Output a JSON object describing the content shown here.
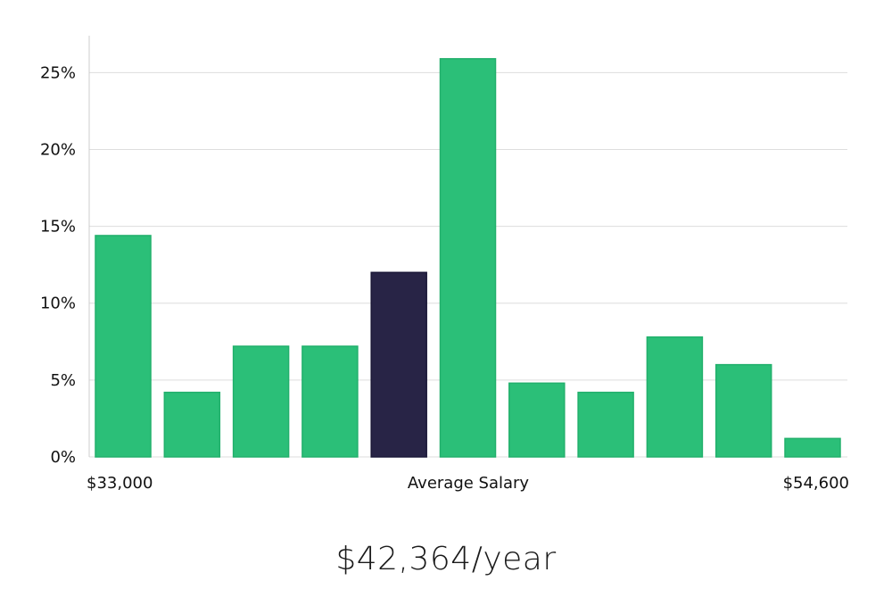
{
  "chart_data": {
    "type": "bar",
    "y_ticks": [
      "0%",
      "5%",
      "10%",
      "15%",
      "20%",
      "25%"
    ],
    "y_tick_values": [
      0,
      5,
      10,
      15,
      20,
      25
    ],
    "ylim": [
      0,
      27.4
    ],
    "values": [
      14.4,
      4.2,
      7.2,
      7.2,
      12.0,
      25.9,
      4.8,
      4.2,
      7.8,
      6.0,
      1.2
    ],
    "highlight_index": 4,
    "x_labels": {
      "left": "$33,000",
      "center": "Average Salary",
      "right": "$54,600"
    },
    "grid": true,
    "colors": {
      "bar": "#2bbf78",
      "bar_edge": "#22b06c",
      "highlight": "#282446",
      "highlight_edge": "#1b1838",
      "grid": "#dddddd",
      "axis": "#cccccc"
    }
  },
  "summary": {
    "salary": "$42,364/year"
  }
}
